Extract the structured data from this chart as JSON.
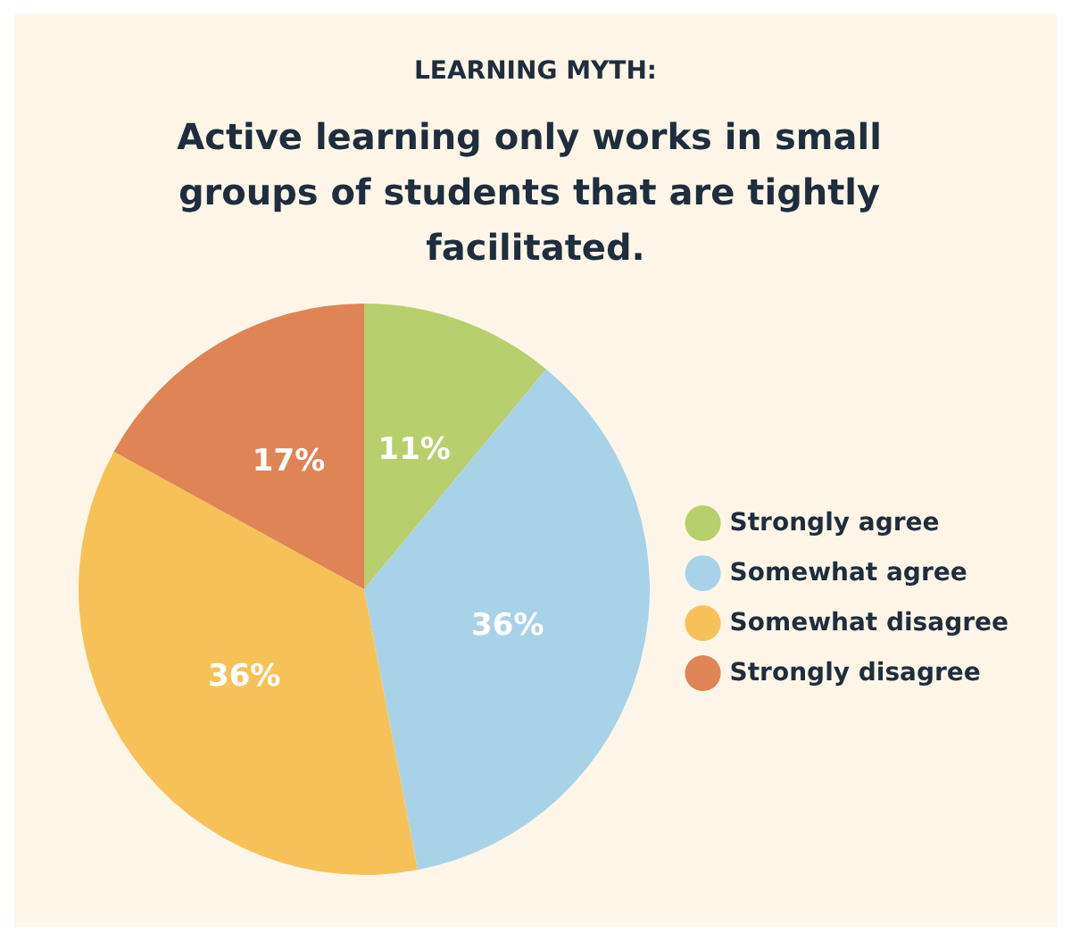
{
  "chart_data": {
    "type": "pie",
    "title": "LEARNING MYTH:",
    "subtitle": "Active learning only works in small groups of students that are tightly facilitated.",
    "categories": [
      "Strongly agree",
      "Somewhat agree",
      "Somewhat disagree",
      "Strongly disagree"
    ],
    "values": [
      11,
      36,
      36,
      17
    ],
    "colors": [
      "#b8cf6e",
      "#a8d2e8",
      "#f6c257",
      "#df8455"
    ],
    "value_labels": [
      "11%",
      "36%",
      "36%",
      "17%"
    ],
    "legend": "right"
  }
}
